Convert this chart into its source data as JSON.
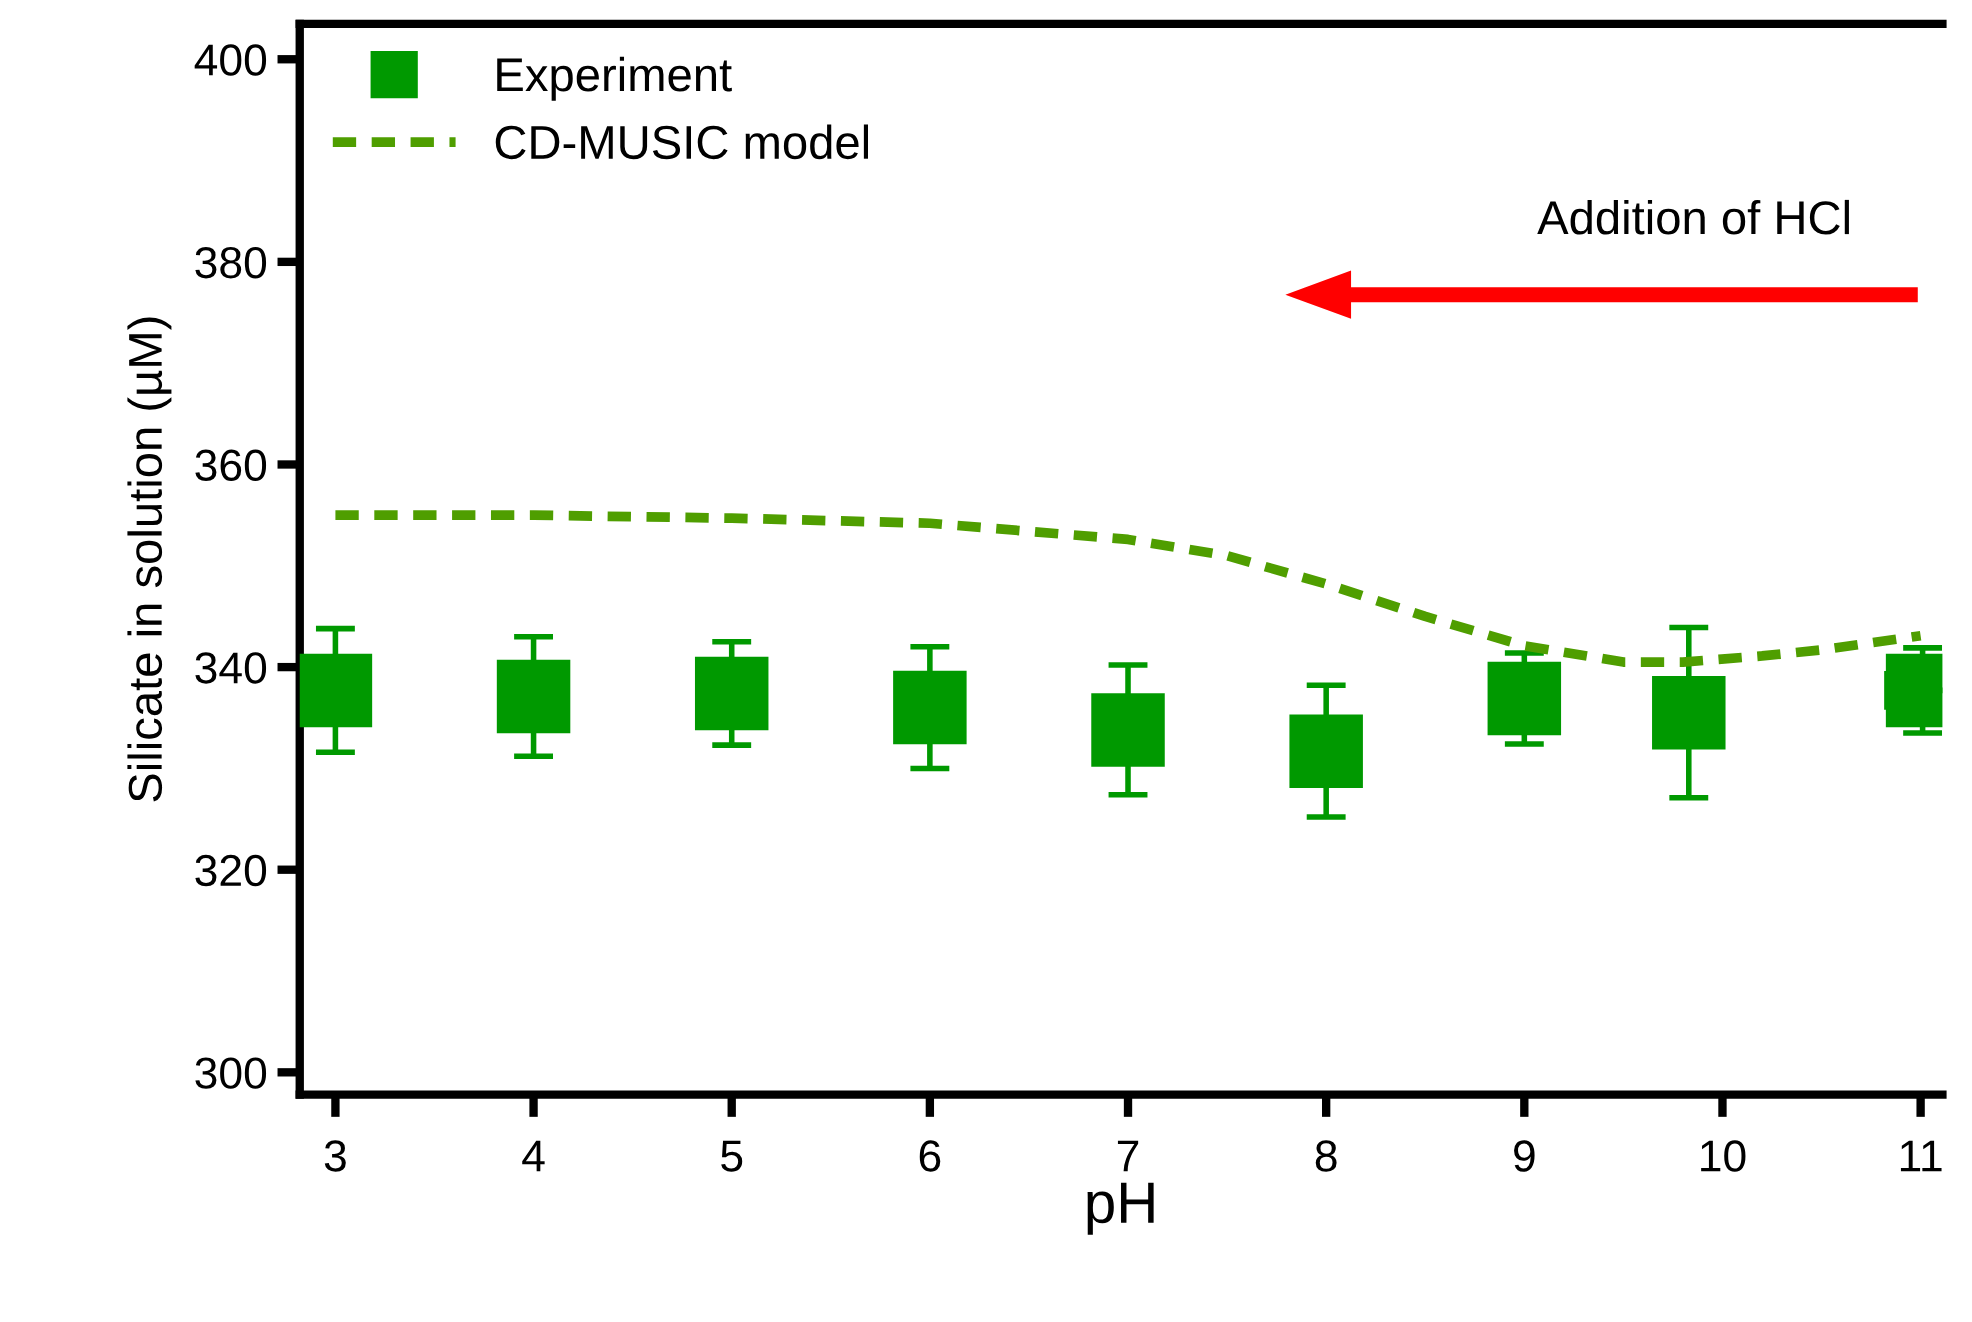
{
  "chart_data": {
    "type": "scatter",
    "xlabel": "pH",
    "ylabel": "Silicate in solution (µM)",
    "xlim": [
      2.82,
      11.11
    ],
    "ylim": [
      297.8,
      403.5
    ],
    "xticks": [
      3,
      4,
      5,
      6,
      7,
      8,
      9,
      10,
      11
    ],
    "yticks": [
      300,
      320,
      340,
      360,
      380,
      400
    ],
    "grid": false,
    "legend": "top left",
    "annotations": [
      "Addition of HCl"
    ],
    "series": [
      {
        "name": "Experiment",
        "color": "#009900",
        "marker": "square",
        "x": [
          3,
          4,
          5,
          6,
          7,
          8,
          9,
          9.83,
          11.01
        ],
        "values": [
          337.7,
          337.1,
          337.4,
          336.0,
          333.8,
          331.7,
          336.9,
          335.5,
          337.7
        ],
        "errors": [
          6.1,
          5.9,
          5.1,
          6.0,
          6.4,
          6.5,
          4.5,
          8.4,
          4.2
        ],
        "xerrors": [
          null,
          null,
          null,
          null,
          null,
          null,
          null,
          null,
          0.18
        ]
      },
      {
        "name": "CD-MUSIC model",
        "type": "line",
        "color": "#4f9e00",
        "line_style": "dashed",
        "marker": "none",
        "x": [
          3,
          4,
          5,
          6,
          7,
          7.5,
          8,
          8.5,
          9,
          9.5,
          9.8,
          10.2,
          10.5,
          11
        ],
        "values": [
          355.0,
          355.0,
          354.7,
          354.2,
          352.6,
          351.0,
          348.2,
          345.0,
          342.1,
          340.5,
          340.5,
          341.1,
          341.7,
          343.1
        ]
      }
    ]
  }
}
